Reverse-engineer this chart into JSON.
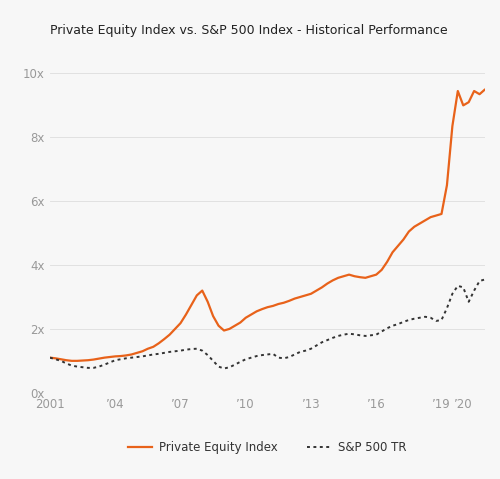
{
  "title": "Private Equity Index vs. S&P 500 Index - Historical Performance",
  "background_color": "#f7f7f7",
  "plot_bg_color": "#f7f7f7",
  "pe_color": "#E8621A",
  "sp_color": "#333333",
  "pe_label": "Private Equity Index",
  "sp_label": "S&P 500 TR",
  "ylim": [
    0,
    10.8
  ],
  "yticks": [
    0,
    2,
    4,
    6,
    8,
    10
  ],
  "ytick_labels": [
    "0x",
    "2x",
    "4x",
    "6x",
    "8x",
    "10x"
  ],
  "xlim": [
    2001.0,
    2021.0
  ],
  "xticks": [
    2001,
    2004,
    2007,
    2010,
    2013,
    2016,
    2019,
    2020
  ],
  "xtick_labels": [
    "2001",
    "’04",
    "’07",
    "’10",
    "’13",
    "’16",
    "’19",
    "’20"
  ],
  "pe_x": [
    2001.0,
    2001.25,
    2001.5,
    2001.75,
    2002.0,
    2002.25,
    2002.5,
    2002.75,
    2003.0,
    2003.25,
    2003.5,
    2003.75,
    2004.0,
    2004.25,
    2004.5,
    2004.75,
    2005.0,
    2005.25,
    2005.5,
    2005.75,
    2006.0,
    2006.25,
    2006.5,
    2006.75,
    2007.0,
    2007.25,
    2007.5,
    2007.75,
    2008.0,
    2008.25,
    2008.5,
    2008.75,
    2009.0,
    2009.25,
    2009.5,
    2009.75,
    2010.0,
    2010.25,
    2010.5,
    2010.75,
    2011.0,
    2011.25,
    2011.5,
    2011.75,
    2012.0,
    2012.25,
    2012.5,
    2012.75,
    2013.0,
    2013.25,
    2013.5,
    2013.75,
    2014.0,
    2014.25,
    2014.5,
    2014.75,
    2015.0,
    2015.25,
    2015.5,
    2015.75,
    2016.0,
    2016.25,
    2016.5,
    2016.75,
    2017.0,
    2017.25,
    2017.5,
    2017.75,
    2018.0,
    2018.25,
    2018.5,
    2018.75,
    2019.0,
    2019.25,
    2019.5,
    2019.75,
    2020.0,
    2020.25,
    2020.5,
    2020.75,
    2021.0
  ],
  "pe_y": [
    1.1,
    1.08,
    1.05,
    1.02,
    1.0,
    1.0,
    1.01,
    1.02,
    1.04,
    1.07,
    1.1,
    1.12,
    1.14,
    1.15,
    1.17,
    1.2,
    1.25,
    1.3,
    1.38,
    1.44,
    1.55,
    1.68,
    1.82,
    2.0,
    2.18,
    2.45,
    2.75,
    3.05,
    3.2,
    2.85,
    2.4,
    2.1,
    1.95,
    2.0,
    2.1,
    2.2,
    2.35,
    2.45,
    2.55,
    2.62,
    2.68,
    2.72,
    2.78,
    2.82,
    2.88,
    2.95,
    3.0,
    3.05,
    3.1,
    3.2,
    3.3,
    3.42,
    3.52,
    3.6,
    3.65,
    3.7,
    3.65,
    3.62,
    3.6,
    3.65,
    3.7,
    3.85,
    4.1,
    4.4,
    4.6,
    4.8,
    5.05,
    5.2,
    5.3,
    5.4,
    5.5,
    5.55,
    5.6,
    6.5,
    8.35,
    9.45,
    9.0,
    9.1,
    9.45,
    9.35,
    9.5
  ],
  "sp_x": [
    2001.0,
    2001.25,
    2001.5,
    2001.75,
    2002.0,
    2002.25,
    2002.5,
    2002.75,
    2003.0,
    2003.25,
    2003.5,
    2003.75,
    2004.0,
    2004.25,
    2004.5,
    2004.75,
    2005.0,
    2005.25,
    2005.5,
    2005.75,
    2006.0,
    2006.25,
    2006.5,
    2006.75,
    2007.0,
    2007.25,
    2007.5,
    2007.75,
    2008.0,
    2008.25,
    2008.5,
    2008.75,
    2009.0,
    2009.25,
    2009.5,
    2009.75,
    2010.0,
    2010.25,
    2010.5,
    2010.75,
    2011.0,
    2011.25,
    2011.5,
    2011.75,
    2012.0,
    2012.25,
    2012.5,
    2012.75,
    2013.0,
    2013.25,
    2013.5,
    2013.75,
    2014.0,
    2014.25,
    2014.5,
    2014.75,
    2015.0,
    2015.25,
    2015.5,
    2015.75,
    2016.0,
    2016.25,
    2016.5,
    2016.75,
    2017.0,
    2017.25,
    2017.5,
    2017.75,
    2018.0,
    2018.25,
    2018.5,
    2018.75,
    2019.0,
    2019.25,
    2019.5,
    2019.75,
    2020.0,
    2020.25,
    2020.5,
    2020.75,
    2021.0
  ],
  "sp_y": [
    1.1,
    1.05,
    1.0,
    0.92,
    0.85,
    0.82,
    0.8,
    0.78,
    0.78,
    0.82,
    0.88,
    0.95,
    1.02,
    1.05,
    1.08,
    1.1,
    1.12,
    1.14,
    1.17,
    1.2,
    1.22,
    1.25,
    1.28,
    1.3,
    1.32,
    1.35,
    1.37,
    1.38,
    1.32,
    1.18,
    1.0,
    0.82,
    0.76,
    0.8,
    0.88,
    0.97,
    1.05,
    1.1,
    1.15,
    1.18,
    1.2,
    1.22,
    1.1,
    1.08,
    1.12,
    1.2,
    1.28,
    1.32,
    1.38,
    1.48,
    1.58,
    1.65,
    1.72,
    1.78,
    1.82,
    1.85,
    1.83,
    1.8,
    1.78,
    1.8,
    1.82,
    1.92,
    2.02,
    2.1,
    2.15,
    2.22,
    2.28,
    2.32,
    2.35,
    2.38,
    2.35,
    2.25,
    2.28,
    2.65,
    3.1,
    3.35,
    3.3,
    2.85,
    3.2,
    3.5,
    3.55
  ]
}
